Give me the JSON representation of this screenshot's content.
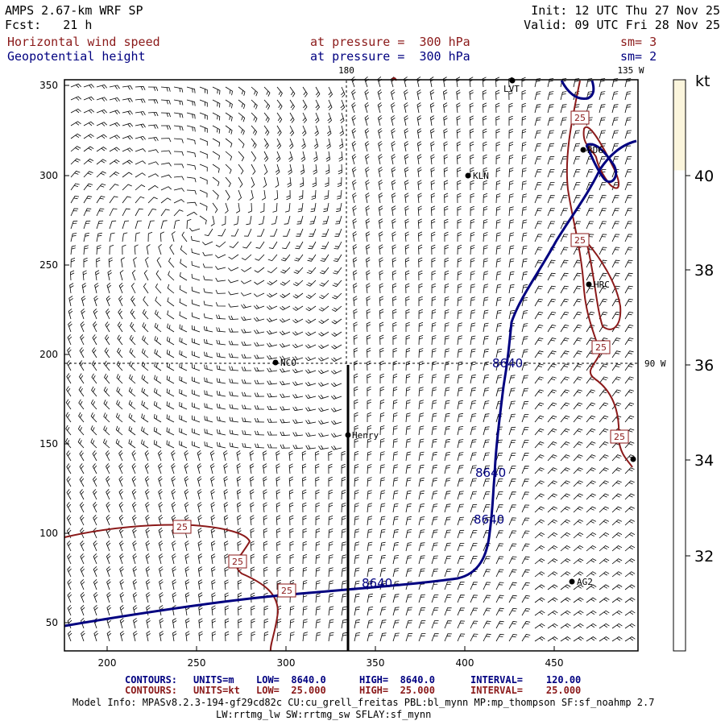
{
  "header": {
    "model": "AMPS 2.67-km WRF SP",
    "init": "Init: 12 UTC Thu 27 Nov 25",
    "forecast": "Fcst:   21 h",
    "valid": "Valid: 09 UTC Fri 28 Nov 25",
    "field1": "Horizontal wind speed",
    "field1_level": "at pressure =  300 hPa",
    "field1_sm": "sm= 3",
    "field2": "Geopotential height",
    "field2_level": "at pressure =  300 hPa",
    "field2_sm": "sm= 2"
  },
  "map": {
    "meridian_labels": [
      "180",
      "135 W",
      "90 W"
    ],
    "x_ticks": [
      "200",
      "250",
      "300",
      "350",
      "400",
      "450"
    ],
    "y_ticks": [
      "350",
      "300",
      "250",
      "200",
      "150",
      "100",
      "50"
    ],
    "stations": [
      {
        "name": "LVT"
      },
      {
        "name": "RDG"
      },
      {
        "name": "KLN"
      },
      {
        "name": "HRC"
      },
      {
        "name": "NCO"
      },
      {
        "name": "Henry"
      },
      {
        "name": "AG2"
      }
    ],
    "height_contour_label": "8640",
    "speed_contour_label": "25",
    "colors": {
      "height": "#000080",
      "speed": "#8b1a1a",
      "barb": "#000000"
    }
  },
  "colorbar": {
    "unit": "kt",
    "labels": [
      "40",
      "38",
      "36",
      "34",
      "32"
    ],
    "fill_color": "#fbf5dc"
  },
  "footer": {
    "row1": {
      "title": "CONTOURS:",
      "units": "UNITS=m",
      "low": "LOW=  8640.0",
      "high": "HIGH=  8640.0",
      "interval": "INTERVAL=    120.00"
    },
    "row2": {
      "title": "CONTOURS:",
      "units": "UNITS=kt",
      "low": "LOW=  25.000",
      "high": "HIGH=  25.000",
      "interval": "INTERVAL=    25.000"
    },
    "model_info": "Model Info: MPASv8.2.3-194-gf29cd82c CU:cu_grell_freitas PBL:bl_mynn MP:mp_thompson SF:sf_noahmp 2.7",
    "model_info2": "LW:rrtmg_lw SW:rrtmg_sw SFLAY:sf_mynn"
  }
}
